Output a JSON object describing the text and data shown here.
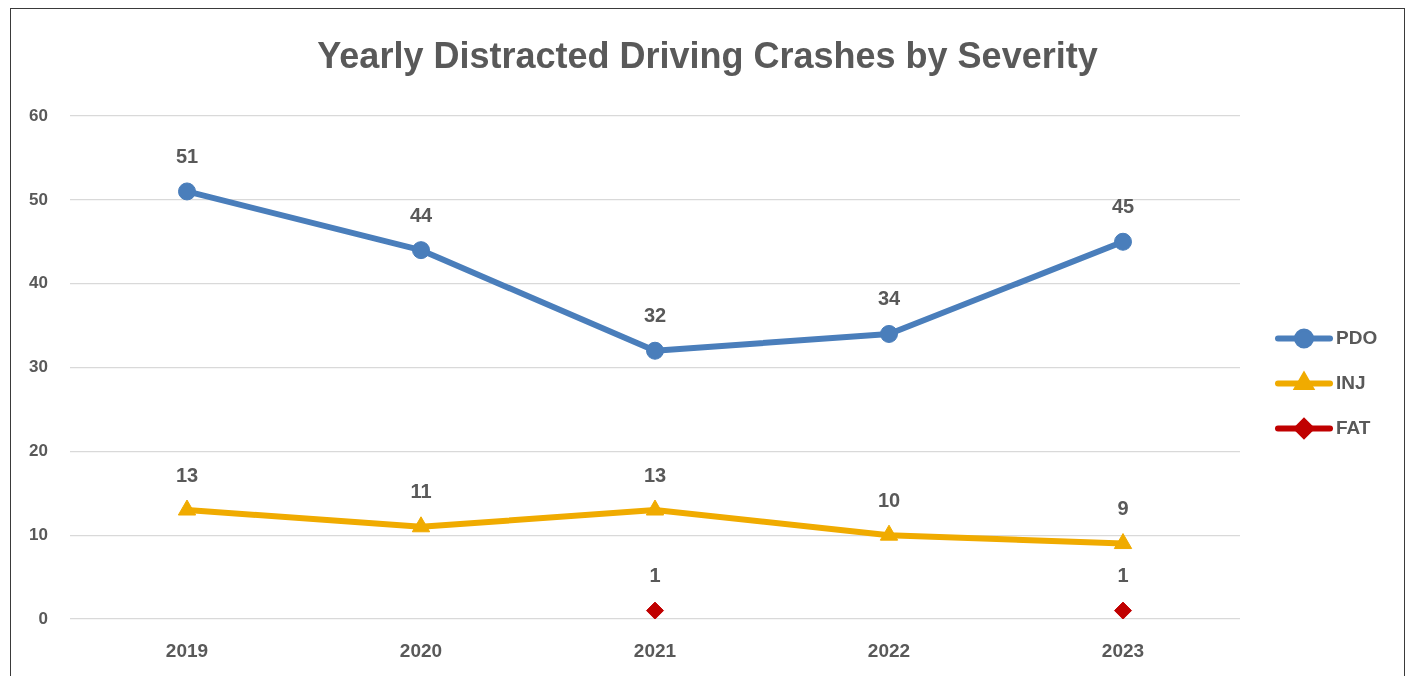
{
  "chart_data": {
    "type": "line",
    "title": "Yearly Distracted Driving Crashes by Severity",
    "categories": [
      "2019",
      "2020",
      "2021",
      "2022",
      "2023"
    ],
    "series": [
      {
        "name": "PDO",
        "color": "#4a7ebb",
        "marker": "circle",
        "values": [
          51,
          44,
          32,
          34,
          45
        ]
      },
      {
        "name": "INJ",
        "color": "#f0ab00",
        "marker": "triangle",
        "values": [
          13,
          11,
          13,
          10,
          9
        ]
      },
      {
        "name": "FAT",
        "type": "scatter",
        "color": "#c00000",
        "marker": "diamond",
        "values": [
          null,
          null,
          1,
          null,
          1
        ]
      }
    ],
    "ylim": [
      0,
      60
    ],
    "yticks": [
      0,
      10,
      20,
      30,
      40,
      50,
      60
    ],
    "grid": "y",
    "legend": "right",
    "data_labels": true,
    "line_style": "solid"
  }
}
